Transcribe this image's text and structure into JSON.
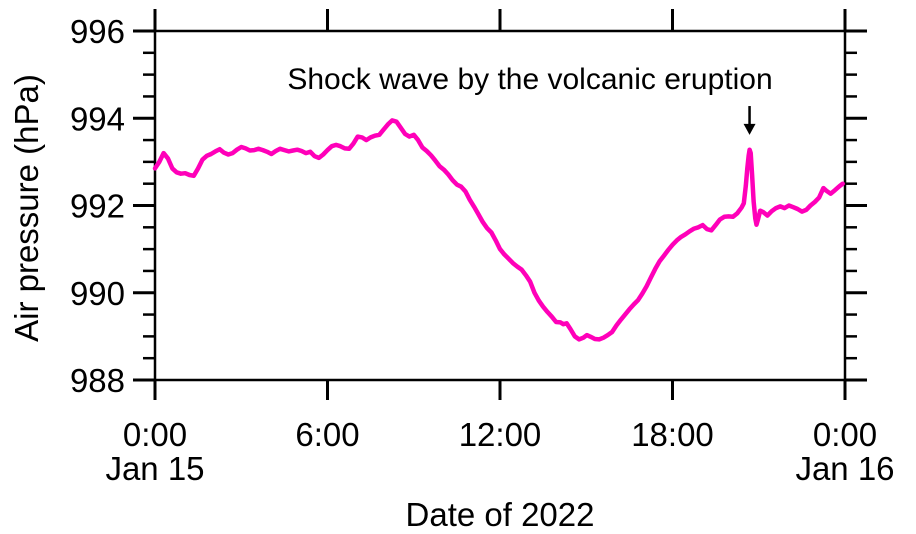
{
  "chart_data": {
    "type": "line",
    "xlabel": "Date of 2022",
    "ylabel": "Air pressure (hPa)",
    "xlim": [
      0,
      24
    ],
    "ylim": [
      988,
      996
    ],
    "x_unit_hours_from": "Jan 15 0:00",
    "x_ticks": [
      {
        "hour": 0,
        "label": "0:00",
        "date": "Jan 15"
      },
      {
        "hour": 6,
        "label": "6:00"
      },
      {
        "hour": 12,
        "label": "12:00"
      },
      {
        "hour": 18,
        "label": "18:00"
      },
      {
        "hour": 24,
        "label": "0:00",
        "date": "Jan 16"
      }
    ],
    "y_major_ticks": [
      988,
      990,
      992,
      994,
      996
    ],
    "y_minor_step": 0.5,
    "grid": false,
    "background": "#ffffff",
    "axis_color": "#000000",
    "line_color": "#FF00B9",
    "annotation": {
      "text": "Shock wave by the volcanic eruption",
      "arrow_t": 20.68,
      "arrow_p_from": 994.28,
      "arrow_p_to": 993.62
    },
    "series": [
      {
        "name": "air-pressure-hPa",
        "points": [
          [
            0.0,
            992.85
          ],
          [
            0.15,
            993.0
          ],
          [
            0.3,
            993.2
          ],
          [
            0.45,
            993.08
          ],
          [
            0.6,
            992.85
          ],
          [
            0.75,
            992.76
          ],
          [
            0.9,
            992.73
          ],
          [
            1.05,
            992.74
          ],
          [
            1.2,
            992.7
          ],
          [
            1.35,
            992.68
          ],
          [
            1.5,
            992.85
          ],
          [
            1.65,
            993.05
          ],
          [
            1.8,
            993.14
          ],
          [
            1.95,
            993.18
          ],
          [
            2.1,
            993.24
          ],
          [
            2.25,
            993.29
          ],
          [
            2.4,
            993.21
          ],
          [
            2.55,
            993.17
          ],
          [
            2.7,
            993.2
          ],
          [
            2.85,
            993.28
          ],
          [
            3.0,
            993.34
          ],
          [
            3.15,
            993.31
          ],
          [
            3.3,
            993.26
          ],
          [
            3.45,
            993.27
          ],
          [
            3.6,
            993.3
          ],
          [
            3.75,
            993.27
          ],
          [
            3.9,
            993.23
          ],
          [
            4.05,
            993.18
          ],
          [
            4.2,
            993.25
          ],
          [
            4.35,
            993.3
          ],
          [
            4.5,
            993.27
          ],
          [
            4.65,
            993.24
          ],
          [
            4.8,
            993.26
          ],
          [
            4.95,
            993.28
          ],
          [
            5.1,
            993.25
          ],
          [
            5.25,
            993.2
          ],
          [
            5.4,
            993.23
          ],
          [
            5.55,
            993.13
          ],
          [
            5.7,
            993.09
          ],
          [
            5.85,
            993.17
          ],
          [
            6.0,
            993.27
          ],
          [
            6.15,
            993.36
          ],
          [
            6.3,
            993.39
          ],
          [
            6.45,
            993.36
          ],
          [
            6.6,
            993.31
          ],
          [
            6.75,
            993.3
          ],
          [
            6.9,
            993.42
          ],
          [
            7.05,
            993.58
          ],
          [
            7.2,
            993.56
          ],
          [
            7.35,
            993.5
          ],
          [
            7.5,
            993.56
          ],
          [
            7.65,
            993.6
          ],
          [
            7.8,
            993.62
          ],
          [
            7.95,
            993.74
          ],
          [
            8.1,
            993.86
          ],
          [
            8.25,
            993.95
          ],
          [
            8.4,
            993.92
          ],
          [
            8.55,
            993.78
          ],
          [
            8.7,
            993.64
          ],
          [
            8.85,
            993.58
          ],
          [
            9.0,
            993.62
          ],
          [
            9.15,
            993.5
          ],
          [
            9.3,
            993.33
          ],
          [
            9.45,
            993.25
          ],
          [
            9.6,
            993.15
          ],
          [
            9.75,
            993.03
          ],
          [
            9.9,
            992.9
          ],
          [
            10.05,
            992.82
          ],
          [
            10.2,
            992.71
          ],
          [
            10.35,
            992.58
          ],
          [
            10.5,
            992.48
          ],
          [
            10.65,
            992.43
          ],
          [
            10.8,
            992.32
          ],
          [
            10.95,
            992.13
          ],
          [
            11.1,
            991.97
          ],
          [
            11.25,
            991.8
          ],
          [
            11.4,
            991.62
          ],
          [
            11.55,
            991.48
          ],
          [
            11.7,
            991.38
          ],
          [
            11.85,
            991.2
          ],
          [
            12.0,
            991.0
          ],
          [
            12.15,
            990.88
          ],
          [
            12.3,
            990.78
          ],
          [
            12.45,
            990.68
          ],
          [
            12.6,
            990.6
          ],
          [
            12.75,
            990.53
          ],
          [
            12.9,
            990.4
          ],
          [
            13.05,
            990.25
          ],
          [
            13.2,
            990.0
          ],
          [
            13.35,
            989.82
          ],
          [
            13.5,
            989.68
          ],
          [
            13.65,
            989.56
          ],
          [
            13.8,
            989.45
          ],
          [
            13.95,
            989.33
          ],
          [
            14.1,
            989.32
          ],
          [
            14.2,
            989.28
          ],
          [
            14.32,
            989.3
          ],
          [
            14.45,
            989.17
          ],
          [
            14.6,
            989.0
          ],
          [
            14.75,
            988.93
          ],
          [
            14.9,
            988.97
          ],
          [
            15.02,
            989.03
          ],
          [
            15.15,
            988.99
          ],
          [
            15.3,
            988.94
          ],
          [
            15.45,
            988.93
          ],
          [
            15.6,
            988.97
          ],
          [
            15.75,
            989.03
          ],
          [
            15.9,
            989.1
          ],
          [
            16.05,
            989.25
          ],
          [
            16.2,
            989.38
          ],
          [
            16.35,
            989.5
          ],
          [
            16.5,
            989.62
          ],
          [
            16.65,
            989.73
          ],
          [
            16.8,
            989.83
          ],
          [
            16.95,
            989.98
          ],
          [
            17.1,
            990.15
          ],
          [
            17.25,
            990.35
          ],
          [
            17.4,
            990.55
          ],
          [
            17.55,
            990.72
          ],
          [
            17.7,
            990.85
          ],
          [
            17.85,
            990.98
          ],
          [
            18.0,
            991.1
          ],
          [
            18.15,
            991.2
          ],
          [
            18.3,
            991.28
          ],
          [
            18.45,
            991.34
          ],
          [
            18.6,
            991.41
          ],
          [
            18.75,
            991.47
          ],
          [
            18.9,
            991.5
          ],
          [
            19.05,
            991.55
          ],
          [
            19.2,
            991.46
          ],
          [
            19.35,
            991.43
          ],
          [
            19.5,
            991.55
          ],
          [
            19.65,
            991.68
          ],
          [
            19.8,
            991.74
          ],
          [
            19.95,
            991.75
          ],
          [
            20.1,
            991.74
          ],
          [
            20.25,
            991.82
          ],
          [
            20.4,
            991.95
          ],
          [
            20.48,
            992.05
          ],
          [
            20.55,
            992.45
          ],
          [
            20.6,
            992.85
          ],
          [
            20.65,
            993.15
          ],
          [
            20.68,
            993.28
          ],
          [
            20.72,
            993.2
          ],
          [
            20.77,
            992.7
          ],
          [
            20.82,
            992.1
          ],
          [
            20.88,
            991.7
          ],
          [
            20.92,
            991.56
          ],
          [
            20.98,
            991.7
          ],
          [
            21.05,
            991.88
          ],
          [
            21.15,
            991.85
          ],
          [
            21.3,
            991.77
          ],
          [
            21.45,
            991.87
          ],
          [
            21.6,
            991.94
          ],
          [
            21.75,
            991.98
          ],
          [
            21.9,
            991.94
          ],
          [
            22.05,
            992.0
          ],
          [
            22.2,
            991.96
          ],
          [
            22.35,
            991.92
          ],
          [
            22.5,
            991.86
          ],
          [
            22.65,
            991.9
          ],
          [
            22.8,
            992.0
          ],
          [
            22.95,
            992.08
          ],
          [
            23.1,
            992.18
          ],
          [
            23.25,
            992.4
          ],
          [
            23.35,
            992.34
          ],
          [
            23.5,
            992.27
          ],
          [
            23.65,
            992.35
          ],
          [
            23.8,
            992.44
          ],
          [
            23.92,
            992.5
          ]
        ]
      }
    ]
  }
}
